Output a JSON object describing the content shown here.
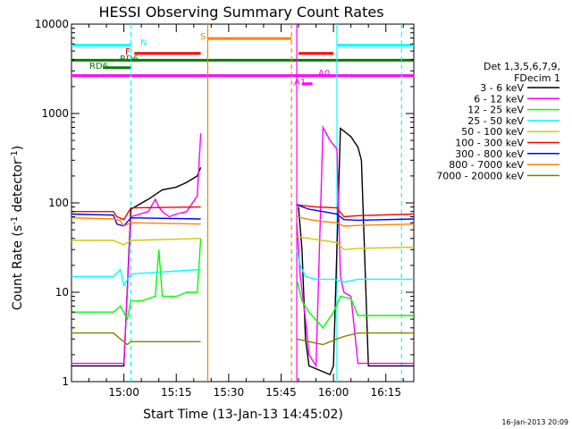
{
  "chart_data": {
    "type": "line",
    "title": "HESSI Observing Summary Count Rates",
    "xlabel": "Start Time (13-Jan-13 14:45:02)",
    "ylabel_main": "Count Rate (s",
    "ylabel_sup1": "-1",
    "ylabel_mid": " detector",
    "ylabel_sup2": "-1",
    "ylabel_end": ")",
    "y_scale": "log",
    "ylim": [
      1,
      10000
    ],
    "xlim_minutes": [
      0,
      98
    ],
    "y_ticks": [
      "1",
      "10",
      "100",
      "1000",
      "10000"
    ],
    "x_ticks": [
      {
        "label": "15:00",
        "minutes": 15
      },
      {
        "label": "15:15",
        "minutes": 30
      },
      {
        "label": "15:30",
        "minutes": 45
      },
      {
        "label": "15:45",
        "minutes": 60
      },
      {
        "label": "16:00",
        "minutes": 75
      },
      {
        "label": "16:15",
        "minutes": 90
      }
    ],
    "legend_header": [
      "Det 1,3,5,6,7,9,",
      "FDecim 1"
    ],
    "series": [
      {
        "name": "3 - 6 keV",
        "color": "#000000",
        "points": [
          [
            0,
            1.5
          ],
          [
            15,
            1.5
          ],
          [
            17,
            85
          ],
          [
            22,
            110
          ],
          [
            26,
            140
          ],
          [
            30,
            150
          ],
          [
            33,
            170
          ],
          [
            36,
            200
          ],
          [
            37,
            250
          ],
          [
            55,
            null
          ],
          [
            64,
            null
          ],
          [
            65,
            90
          ],
          [
            66,
            30
          ],
          [
            67,
            3
          ],
          [
            68,
            1.5
          ],
          [
            74,
            1.2
          ],
          [
            75,
            1.5
          ],
          [
            77,
            680
          ],
          [
            80,
            550
          ],
          [
            82,
            420
          ],
          [
            83,
            300
          ],
          [
            85,
            1.5
          ],
          [
            98,
            1.5
          ]
        ]
      },
      {
        "name": "6 - 12 keV",
        "color": "#ff00ff",
        "points": [
          [
            0,
            1.6
          ],
          [
            15,
            1.6
          ],
          [
            17,
            70
          ],
          [
            22,
            80
          ],
          [
            24,
            110
          ],
          [
            25,
            90
          ],
          [
            26,
            80
          ],
          [
            28,
            70
          ],
          [
            30,
            75
          ],
          [
            33,
            80
          ],
          [
            36,
            120
          ],
          [
            37,
            600
          ],
          [
            55,
            null
          ],
          [
            64,
            null
          ],
          [
            64.5,
            60
          ],
          [
            65.5,
            15
          ],
          [
            67,
            5
          ],
          [
            68,
            2
          ],
          [
            70,
            1.5
          ],
          [
            72,
            700
          ],
          [
            74,
            500
          ],
          [
            76,
            400
          ],
          [
            77,
            15
          ],
          [
            78,
            10
          ],
          [
            80,
            9
          ],
          [
            82,
            1.6
          ],
          [
            98,
            1.6
          ]
        ]
      },
      {
        "name": "12 - 25 keV",
        "color": "#00ff00",
        "points": [
          [
            0,
            6
          ],
          [
            12,
            6
          ],
          [
            14,
            7
          ],
          [
            16,
            5
          ],
          [
            17,
            8
          ],
          [
            20,
            8
          ],
          [
            24,
            9
          ],
          [
            25,
            30
          ],
          [
            26,
            9
          ],
          [
            30,
            9
          ],
          [
            33,
            10
          ],
          [
            36,
            10
          ],
          [
            37,
            40
          ],
          [
            55,
            null
          ],
          [
            64,
            null
          ],
          [
            64.5,
            14
          ],
          [
            66,
            8
          ],
          [
            68,
            6
          ],
          [
            72,
            4
          ],
          [
            75,
            6
          ],
          [
            77,
            9
          ],
          [
            80,
            8.5
          ],
          [
            82,
            5.5
          ],
          [
            98,
            5.5
          ]
        ]
      },
      {
        "name": "25 - 50 keV",
        "color": "#00ffff",
        "points": [
          [
            0,
            15
          ],
          [
            12,
            15
          ],
          [
            14,
            18
          ],
          [
            15,
            12
          ],
          [
            17,
            16
          ],
          [
            37,
            18
          ],
          [
            55,
            null
          ],
          [
            64,
            null
          ],
          [
            64.5,
            30
          ],
          [
            65.5,
            20
          ],
          [
            67,
            15
          ],
          [
            70,
            14
          ],
          [
            75,
            14
          ],
          [
            78,
            13
          ],
          [
            82,
            14
          ],
          [
            98,
            14
          ]
        ]
      },
      {
        "name": "50 - 100 keV",
        "color": "#cccc00",
        "points": [
          [
            0,
            38
          ],
          [
            12,
            38
          ],
          [
            15,
            34
          ],
          [
            17,
            38
          ],
          [
            37,
            40
          ],
          [
            55,
            null
          ],
          [
            64,
            null
          ],
          [
            64.5,
            42
          ],
          [
            68,
            40
          ],
          [
            72,
            38
          ],
          [
            76,
            36
          ],
          [
            78,
            30
          ],
          [
            82,
            31
          ],
          [
            98,
            32
          ]
        ]
      },
      {
        "name": "100 - 300 keV",
        "color": "#ff0000",
        "points": [
          [
            0,
            80
          ],
          [
            12,
            80
          ],
          [
            13,
            70
          ],
          [
            15,
            65
          ],
          [
            17,
            88
          ],
          [
            37,
            90
          ],
          [
            55,
            null
          ],
          [
            64,
            null
          ],
          [
            64.5,
            95
          ],
          [
            70,
            90
          ],
          [
            76,
            88
          ],
          [
            78,
            70
          ],
          [
            82,
            72
          ],
          [
            98,
            75
          ]
        ]
      },
      {
        "name": "300 - 800 keV",
        "color": "#0000ff",
        "points": [
          [
            0,
            75
          ],
          [
            12,
            73
          ],
          [
            13,
            58
          ],
          [
            15,
            55
          ],
          [
            17,
            68
          ],
          [
            37,
            66
          ],
          [
            55,
            null
          ],
          [
            64,
            null
          ],
          [
            64.5,
            95
          ],
          [
            68,
            85
          ],
          [
            72,
            80
          ],
          [
            76,
            75
          ],
          [
            78,
            65
          ],
          [
            82,
            64
          ],
          [
            98,
            66
          ]
        ]
      },
      {
        "name": "800 - 7000 keV",
        "color": "#ff8000",
        "points": [
          [
            0,
            68
          ],
          [
            12,
            66
          ],
          [
            14,
            63
          ],
          [
            15,
            55
          ],
          [
            17,
            60
          ],
          [
            37,
            58
          ],
          [
            55,
            null
          ],
          [
            64,
            null
          ],
          [
            64.5,
            70
          ],
          [
            68,
            65
          ],
          [
            72,
            62
          ],
          [
            76,
            60
          ],
          [
            78,
            55
          ],
          [
            82,
            56
          ],
          [
            98,
            58
          ]
        ]
      },
      {
        "name": "7000 - 20000 keV",
        "color": "#808000",
        "points": [
          [
            0,
            3.5
          ],
          [
            12,
            3.5
          ],
          [
            14,
            3
          ],
          [
            16,
            2.6
          ],
          [
            17,
            2.8
          ],
          [
            37,
            2.8
          ],
          [
            55,
            null
          ],
          [
            64,
            null
          ],
          [
            64.5,
            3
          ],
          [
            68,
            2.8
          ],
          [
            72,
            2.6
          ],
          [
            76,
            3
          ],
          [
            78,
            3.2
          ],
          [
            82,
            3.5
          ],
          [
            98,
            3.5
          ]
        ]
      }
    ],
    "flags": [
      {
        "label": "N",
        "color": "#00ffff",
        "y": 5800,
        "segments": [
          [
            0,
            17
          ],
          [
            76,
            98
          ]
        ]
      },
      {
        "label": "F",
        "color": "#ff0000",
        "y": 4700,
        "segments": [
          [
            18,
            37
          ],
          [
            65,
            75
          ]
        ]
      },
      {
        "label": "RD6",
        "color": "#008000",
        "y": 3950,
        "segments": [
          [
            0,
            98
          ]
        ]
      },
      {
        "label": "RD6",
        "color": "#008000",
        "y": 3250,
        "segments": [
          [
            9,
            17
          ]
        ]
      },
      {
        "label": "S",
        "color": "#ff8000",
        "y": 6900,
        "segments": [
          [
            39,
            63
          ]
        ]
      },
      {
        "label": "A0",
        "color": "#ff00ff",
        "y": 2650,
        "segments": [
          [
            0,
            98
          ]
        ]
      },
      {
        "label": "A1",
        "color": "#ff00ff",
        "y": 2150,
        "segments": [
          [
            66,
            69
          ]
        ]
      }
    ],
    "vlines": [
      {
        "x": 17,
        "color": "#00ffff",
        "style": "dashed"
      },
      {
        "x": 76,
        "color": "#00ffff",
        "style": "solid"
      },
      {
        "x": 94.5,
        "color": "#00ffff",
        "style": "dashed"
      },
      {
        "x": 39,
        "color": "#ff8000",
        "style": "solid"
      },
      {
        "x": 63,
        "color": "#ff8000",
        "style": "dashed"
      },
      {
        "x": 64.5,
        "color": "#ff00ff",
        "style": "solid"
      }
    ]
  },
  "footer_date": "16-Jan-2013 20:09"
}
